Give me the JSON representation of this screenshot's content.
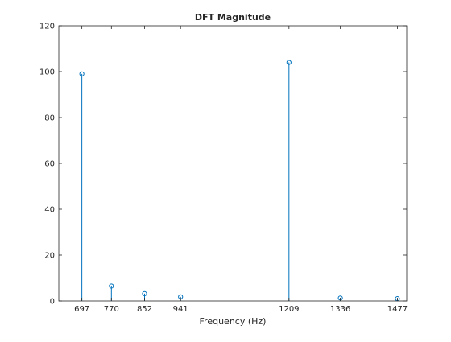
{
  "chart_data": {
    "type": "stem",
    "title": "DFT Magnitude",
    "xlabel": "Frequency (Hz)",
    "ylabel": "",
    "xlim": [
      640,
      1500
    ],
    "ylim": [
      0,
      120
    ],
    "xticks": [
      697,
      770,
      852,
      941,
      1209,
      1336,
      1477
    ],
    "xtick_labels": [
      "697",
      "770",
      "852",
      "941",
      "1209",
      "1336",
      "1477"
    ],
    "yticks": [
      0,
      20,
      40,
      60,
      80,
      100,
      120
    ],
    "ytick_labels": [
      "0",
      "20",
      "40",
      "60",
      "80",
      "100",
      "120"
    ],
    "x": [
      697,
      770,
      852,
      941,
      1209,
      1336,
      1477
    ],
    "values": [
      99.0,
      6.5,
      3.2,
      1.8,
      104.0,
      1.3,
      1.0
    ],
    "grid": false,
    "marker": "circle",
    "colors": {
      "stem": "#0072bd",
      "axes": "#262626",
      "background": "#ffffff"
    }
  }
}
